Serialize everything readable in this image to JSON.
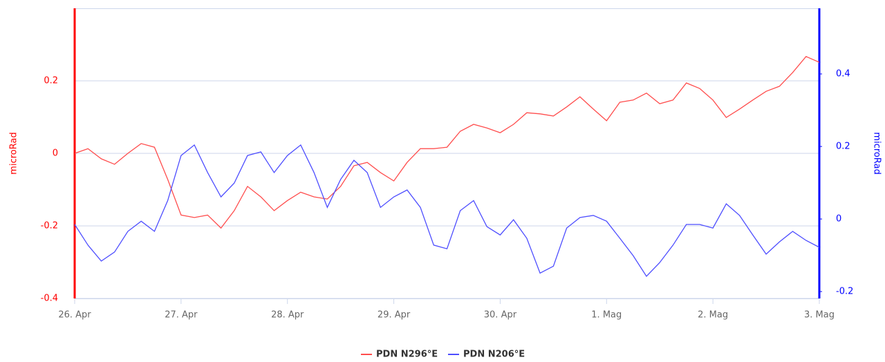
{
  "chart_data": {
    "type": "line",
    "x": [
      0,
      0.125,
      0.25,
      0.375,
      0.5,
      0.625,
      0.75,
      0.875,
      1,
      1.125,
      1.25,
      1.375,
      1.5,
      1.625,
      1.75,
      1.875,
      2,
      2.125,
      2.25,
      2.375,
      2.5,
      2.625,
      2.75,
      2.875,
      3,
      3.125,
      3.25,
      3.375,
      3.5,
      3.625,
      3.75,
      3.875,
      4,
      4.125,
      4.25,
      4.375,
      4.5,
      4.625,
      4.75,
      4.875,
      5,
      5.125,
      5.25,
      5.375,
      5.5,
      5.625,
      5.75,
      5.875,
      6,
      6.125,
      6.25,
      6.375,
      6.5,
      6.625,
      6.75,
      6.875,
      7
    ],
    "xlim": [
      0,
      7
    ],
    "xticks": [
      {
        "value": 0,
        "label": "26. Apr"
      },
      {
        "value": 1,
        "label": "27. Apr"
      },
      {
        "value": 2,
        "label": "28. Apr"
      },
      {
        "value": 3,
        "label": "29. Apr"
      },
      {
        "value": 4,
        "label": "30. Apr"
      },
      {
        "value": 5,
        "label": "1. Mag"
      },
      {
        "value": 6,
        "label": "2. Mag"
      },
      {
        "value": 7,
        "label": "3. Mag"
      }
    ],
    "ylabel": "microRad",
    "ylim": [
      -0.4,
      0.4
    ],
    "yticks": [
      -0.4,
      -0.2,
      0,
      0.2
    ],
    "ycolor": "#ff0000",
    "y2label": "microRad",
    "y2lim": [
      -0.219,
      0.581
    ],
    "y2ticks": [
      -0.2,
      0,
      0.2,
      0.4
    ],
    "y2color": "#0000ff",
    "grid": true,
    "legend": "bottom",
    "series": [
      {
        "name": "PDN N296°E",
        "color": "#ff4d4d",
        "axis": "y",
        "values": [
          0,
          0.013,
          -0.015,
          -0.03,
          0,
          0.027,
          0.017,
          -0.072,
          -0.17,
          -0.177,
          -0.17,
          -0.206,
          -0.158,
          -0.091,
          -0.12,
          -0.158,
          -0.13,
          -0.107,
          -0.12,
          -0.126,
          -0.091,
          -0.034,
          -0.025,
          -0.053,
          -0.076,
          -0.025,
          0.013,
          0.013,
          0.017,
          0.061,
          0.08,
          0.07,
          0.057,
          0.08,
          0.112,
          0.109,
          0.103,
          0.128,
          0.156,
          0.122,
          0.09,
          0.141,
          0.147,
          0.166,
          0.137,
          0.147,
          0.194,
          0.179,
          0.147,
          0.099,
          0.122,
          0.147,
          0.171,
          0.185,
          0.223,
          0.267,
          0.251
        ]
      },
      {
        "name": "PDN N206°E",
        "color": "#4d4dff",
        "axis": "y2",
        "values": [
          -0.015,
          -0.072,
          -0.116,
          -0.091,
          -0.034,
          -0.006,
          -0.034,
          0.051,
          0.175,
          0.204,
          0.128,
          0.061,
          0.099,
          0.175,
          0.185,
          0.128,
          0.175,
          0.204,
          0.128,
          0.032,
          0.109,
          0.162,
          0.128,
          0.032,
          0.061,
          0.08,
          0.032,
          -0.072,
          -0.082,
          0.023,
          0.051,
          -0.021,
          -0.044,
          -0.002,
          -0.053,
          -0.149,
          -0.13,
          -0.025,
          0.004,
          0.01,
          -0.006,
          -0.053,
          -0.101,
          -0.158,
          -0.12,
          -0.072,
          -0.015,
          -0.015,
          -0.025,
          0.042,
          0.01,
          -0.044,
          -0.097,
          -0.063,
          -0.034,
          -0.059,
          -0.078
        ]
      }
    ]
  }
}
